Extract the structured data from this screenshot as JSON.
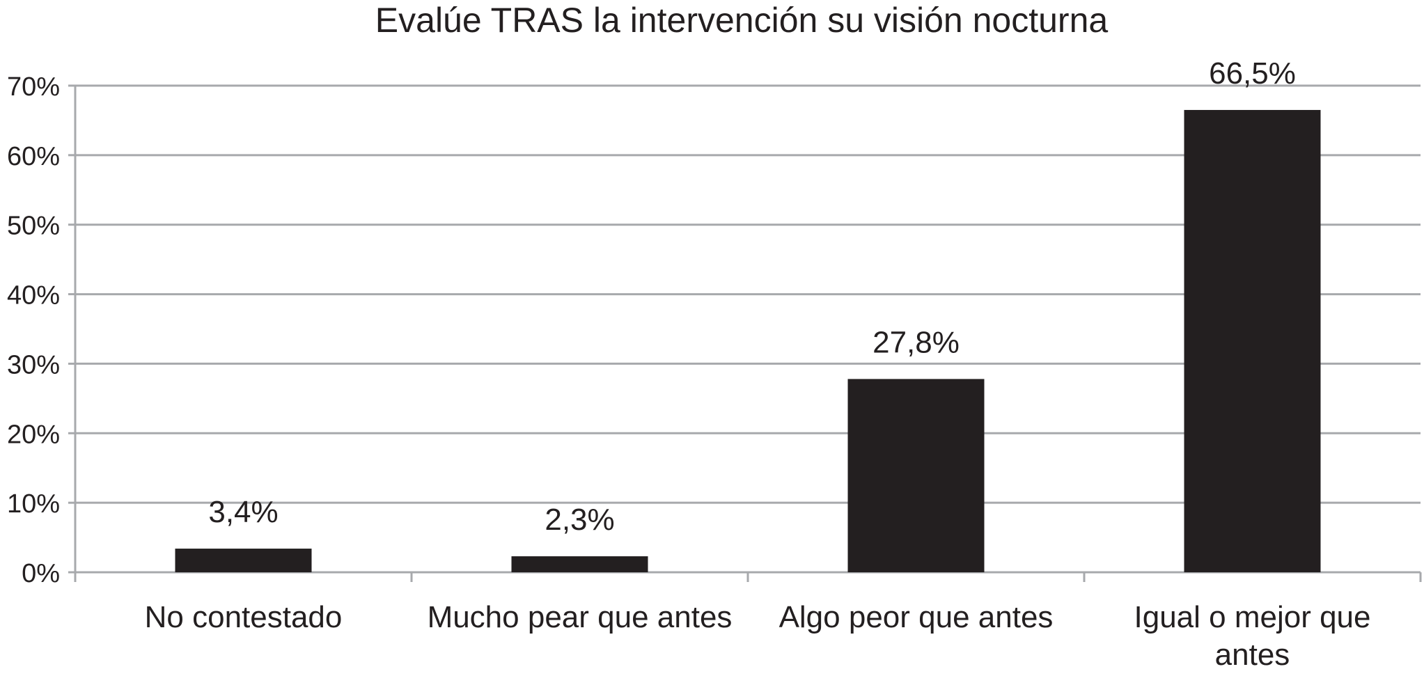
{
  "chart_data": {
    "type": "bar",
    "title": "Evalúe TRAS la intervención su visión nocturna",
    "categories": [
      [
        "No contestado"
      ],
      [
        "Mucho pear que antes"
      ],
      [
        "Algo peor que antes"
      ],
      [
        "Igual o mejor que",
        "antes"
      ]
    ],
    "values": [
      3.4,
      2.3,
      27.8,
      66.5
    ],
    "data_labels": [
      "3,4%",
      "2,3%",
      "27,8%",
      "66,5%"
    ],
    "y_ticks": [
      {
        "value": 0,
        "label": "0%"
      },
      {
        "value": 10,
        "label": "10%"
      },
      {
        "value": 20,
        "label": "20%"
      },
      {
        "value": 30,
        "label": "30%"
      },
      {
        "value": 40,
        "label": "40%"
      },
      {
        "value": 50,
        "label": "50%"
      },
      {
        "value": 60,
        "label": "60%"
      },
      {
        "value": 70,
        "label": "70%"
      }
    ],
    "ylim": [
      0,
      70
    ],
    "xlabel": "",
    "ylabel": "",
    "grid": true,
    "legend": "none",
    "colors": {
      "bar": "#231f20",
      "grid": "#a7a9ac",
      "axis": "#a7a9ac",
      "text": "#231f20"
    }
  }
}
